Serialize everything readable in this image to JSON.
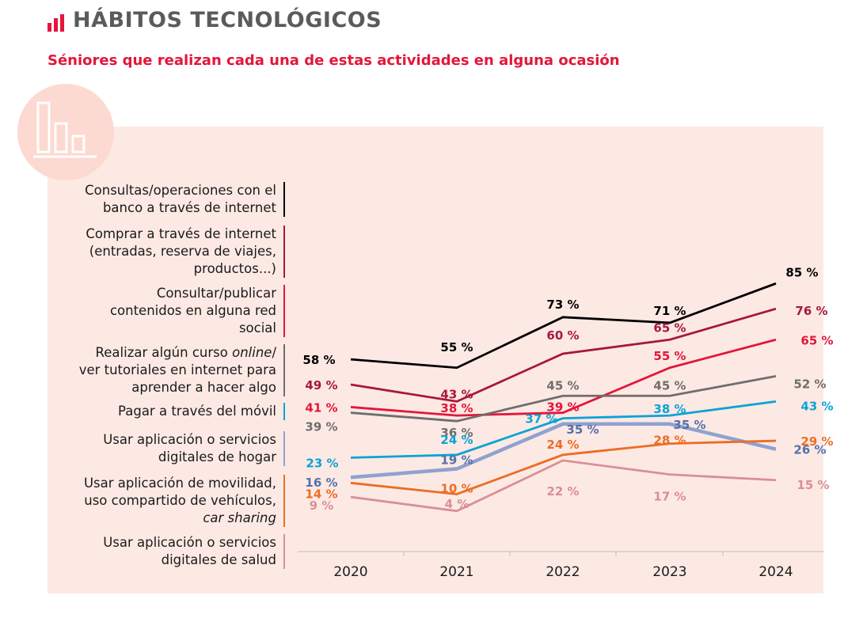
{
  "header": {
    "title": "HÁBITOS TECNOLÓGICOS",
    "subtitle": "Séniores que realizan cada una de estas actividades en alguna ocasión"
  },
  "colors": {
    "accent": "#e2173a",
    "title_gray": "#5b5b5b",
    "panel_bg": "#fde9e4",
    "badge_bg": "#fcd9d1"
  },
  "icons": {
    "header": "bar-chart-icon",
    "badge": "bar-chart-outline-icon"
  },
  "chart_data": {
    "type": "line",
    "title": "Séniores que realizan cada una de estas actividades en alguna ocasión",
    "x": [
      "2020",
      "2021",
      "2022",
      "2023",
      "2024"
    ],
    "ylim": [
      0,
      90
    ],
    "grid": false,
    "series": [
      {
        "name": "Consultas/operaciones con el banco a través de internet",
        "lines": [
          "Consultas/operaciones con el",
          "banco a través de internet"
        ],
        "color": "#000000",
        "values": [
          58,
          55,
          73,
          71,
          85
        ]
      },
      {
        "name": "Comprar a través de internet (entradas, reserva de viajes, productos...)",
        "lines": [
          "Comprar a través de internet",
          "(entradas, reserva de viajes,",
          "productos...)"
        ],
        "color": "#a8173e",
        "values": [
          49,
          43,
          60,
          65,
          76
        ]
      },
      {
        "name": "Consultar/publicar contenidos en alguna red social",
        "lines": [
          "Consultar/publicar",
          "contenidos en alguna red",
          "social"
        ],
        "color": "#e2173a",
        "values": [
          41,
          38,
          39,
          55,
          65
        ]
      },
      {
        "name": "Realizar algún curso online/ ver tutoriales en internet para aprender a hacer algo",
        "lines": [
          "Realizar algún curso |online|/",
          "ver tutoriales en internet para",
          "aprender a hacer algo"
        ],
        "color": "#6e6e6e",
        "values": [
          39,
          36,
          45,
          45,
          52
        ]
      },
      {
        "name": "Pagar a través del móvil",
        "lines": [
          "Pagar a través del móvil"
        ],
        "color": "#0aa3d6",
        "values": [
          23,
          24,
          37,
          38,
          43
        ]
      },
      {
        "name": "Usar aplicación o servicios digitales de hogar",
        "lines": [
          "Usar aplicación o servicios",
          "digitales de hogar"
        ],
        "color": "#8fa2cf",
        "label_color": "#5570a8",
        "values": [
          16,
          19,
          35,
          35,
          26
        ]
      },
      {
        "name": "Usar aplicación de movilidad, uso compartido de vehículos, car sharing",
        "lines": [
          "Usar aplicación de movilidad,",
          "uso compartido de vehículos,",
          "|car sharing|"
        ],
        "color": "#ec6d24",
        "values": [
          14,
          10,
          24,
          28,
          29
        ]
      },
      {
        "name": "Usar aplicación o servicios digitales de salud",
        "lines": [
          "Usar aplicación o servicios",
          "digitales de salud"
        ],
        "color": "#d98f95",
        "values": [
          9,
          4,
          22,
          17,
          15
        ]
      }
    ],
    "value_suffix": " %"
  }
}
